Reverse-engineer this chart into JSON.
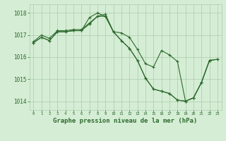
{
  "title": "Graphe pression niveau de la mer (hPa)",
  "xlabel_ticks": [
    0,
    1,
    2,
    3,
    4,
    5,
    6,
    7,
    8,
    9,
    10,
    11,
    12,
    13,
    14,
    15,
    16,
    17,
    18,
    19,
    20,
    21,
    22,
    23
  ],
  "ylim": [
    1013.6,
    1018.4
  ],
  "yticks": [
    1014,
    1015,
    1016,
    1017,
    1018
  ],
  "background_color": "#d5edd5",
  "grid_color": "#aaccaa",
  "line_color": "#2d6a2d",
  "series": [
    [
      1016.7,
      1017.0,
      1016.85,
      1017.2,
      1017.2,
      1017.25,
      1017.25,
      1017.55,
      1017.85,
      1017.95,
      1017.15,
      1017.1,
      1016.9,
      1016.35,
      1015.7,
      1015.55,
      1016.3,
      1016.1,
      1015.8,
      1014.0,
      1014.15,
      1014.85,
      1015.85,
      null
    ],
    [
      1016.65,
      1016.9,
      1016.75,
      1017.15,
      1017.15,
      1017.2,
      1017.2,
      1017.8,
      1018.0,
      1017.85,
      1017.15,
      1016.75,
      1016.4,
      1015.85,
      1015.05,
      1014.55,
      1014.45,
      1014.35,
      1014.05,
      1014.0,
      1014.15,
      1014.85,
      1015.85,
      1015.9
    ],
    [
      1016.65,
      1016.9,
      1016.75,
      1017.15,
      1017.15,
      1017.2,
      1017.2,
      1017.5,
      1017.85,
      1017.85,
      1017.15,
      1016.75,
      1016.4,
      1015.85,
      1015.05,
      1014.55,
      1014.45,
      1014.35,
      1014.05,
      1014.0,
      1014.15,
      1014.85,
      1015.85,
      1015.9
    ]
  ]
}
